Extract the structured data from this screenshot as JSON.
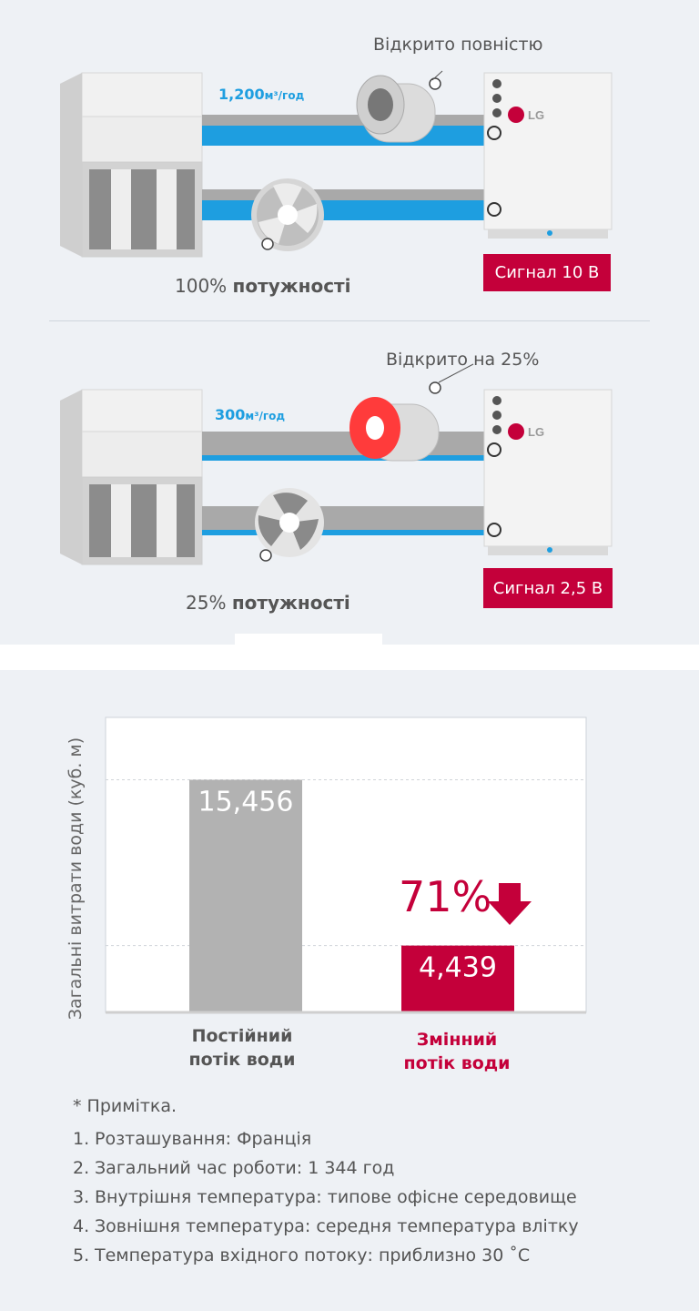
{
  "diagram": {
    "top": {
      "valve_label": "Відкрито повністю",
      "flow_value": "1,200",
      "flow_unit": "м³/год",
      "power_pct": "100%",
      "power_word": "потужності",
      "signal": "Сигнал 10 В"
    },
    "bottom": {
      "valve_label": "Відкрито на 25%",
      "flow_value": "300",
      "flow_unit": "м³/год",
      "power_pct": "25%",
      "power_word": "потужності",
      "signal": "Сигнал 2,5 В"
    },
    "brand": "LG",
    "colors": {
      "accent": "#c4003a",
      "water": "#1e9ee0",
      "pipe": "#a9a9a9"
    }
  },
  "chart_data": {
    "type": "bar",
    "ylabel": "Загальні витрати води (куб. м)",
    "categories": [
      "Постійний\nпотік води",
      "Змінний\nпотік води"
    ],
    "values": [
      15456,
      4439
    ],
    "value_labels": [
      "15,456",
      "4,439"
    ],
    "bar_colors": [
      "#b2b2b2",
      "#c4003a"
    ],
    "reduction_label": "71%",
    "ylim": [
      0,
      19600
    ],
    "grid": true
  },
  "notes": {
    "title": "* Примітка.",
    "items": [
      {
        "num": "1.",
        "text": "Розташування: Франція"
      },
      {
        "num": "2.",
        "text": "Загальний час роботи: 1 344 год"
      },
      {
        "num": "3.",
        "text": "Внутрішня температура: типове офісне середовище"
      },
      {
        "num": "4.",
        "text": "Зовнішня температура: середня температура влітку"
      },
      {
        "num": "5.",
        "text": "Температура вхідного потоку: приблизно 30 ˚C"
      }
    ]
  }
}
